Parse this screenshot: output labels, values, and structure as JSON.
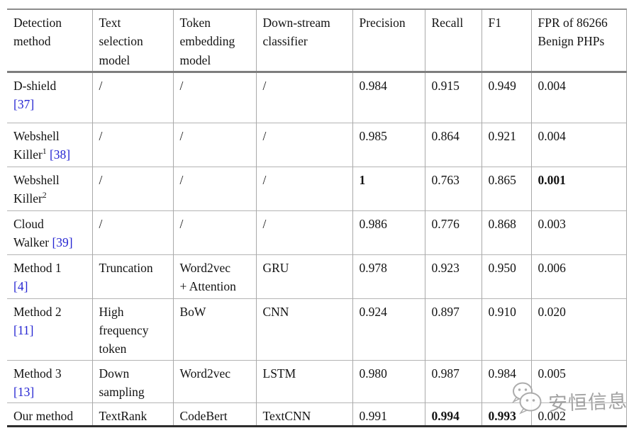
{
  "colors": {
    "citation_blue": "#2525d2",
    "watermark_gray": "#9c9c9c",
    "rule_dark": "#2c2c2c",
    "rule_gray": "#8c8c8c"
  },
  "table": {
    "columns": [
      {
        "label": "Detection\nmethod"
      },
      {
        "label": "Text\nselection\nmodel"
      },
      {
        "label": "Token\nembedding\nmodel"
      },
      {
        "label": "Down-stream\nclassifier"
      },
      {
        "label": "Precision"
      },
      {
        "label": "Recall"
      },
      {
        "label": "F1"
      },
      {
        "label": "FPR of 86266\nBenign PHPs"
      }
    ],
    "rows": [
      {
        "method": [
          {
            "t": "D-shield\n"
          },
          {
            "t": "[37]",
            "cite": true
          }
        ],
        "text_selection": "/",
        "token_embedding": "/",
        "classifier": "/",
        "precision": {
          "v": "0.984"
        },
        "recall": {
          "v": "0.915"
        },
        "f1": {
          "v": "0.949"
        },
        "fpr": {
          "v": "0.004"
        }
      },
      {
        "method": [
          {
            "t": "Webshell\nKiller"
          },
          {
            "t": "1",
            "sup": true
          },
          {
            "t": " "
          },
          {
            "t": "[38]",
            "cite": true
          }
        ],
        "text_selection": "/",
        "token_embedding": "/",
        "classifier": "/",
        "precision": {
          "v": "0.985"
        },
        "recall": {
          "v": "0.864"
        },
        "f1": {
          "v": "0.921"
        },
        "fpr": {
          "v": "0.004"
        }
      },
      {
        "method": [
          {
            "t": "Webshell\nKiller"
          },
          {
            "t": "2",
            "sup": true
          }
        ],
        "text_selection": "/",
        "token_embedding": "/",
        "classifier": "/",
        "precision": {
          "v": "1",
          "bold": true
        },
        "recall": {
          "v": "0.763"
        },
        "f1": {
          "v": "0.865"
        },
        "fpr": {
          "v": "0.001",
          "bold": true
        }
      },
      {
        "method": [
          {
            "t": "Cloud\nWalker "
          },
          {
            "t": "[39]",
            "cite": true
          }
        ],
        "text_selection": "/",
        "token_embedding": "/",
        "classifier": "/",
        "precision": {
          "v": "0.986"
        },
        "recall": {
          "v": "0.776"
        },
        "f1": {
          "v": "0.868"
        },
        "fpr": {
          "v": "0.003"
        }
      },
      {
        "method": [
          {
            "t": "Method 1\n"
          },
          {
            "t": "[4]",
            "cite": true
          }
        ],
        "text_selection": "Truncation",
        "token_embedding": "Word2vec\n+ Attention",
        "classifier": "GRU",
        "precision": {
          "v": "0.978"
        },
        "recall": {
          "v": "0.923"
        },
        "f1": {
          "v": "0.950"
        },
        "fpr": {
          "v": "0.006"
        }
      },
      {
        "method": [
          {
            "t": "Method 2\n"
          },
          {
            "t": "[11]",
            "cite": true
          }
        ],
        "text_selection": "High\nfrequency\ntoken",
        "token_embedding": "BoW",
        "classifier": "CNN",
        "precision": {
          "v": "0.924"
        },
        "recall": {
          "v": "0.897"
        },
        "f1": {
          "v": "0.910"
        },
        "fpr": {
          "v": "0.020"
        }
      },
      {
        "method": [
          {
            "t": "Method 3\n"
          },
          {
            "t": "[13]",
            "cite": true
          }
        ],
        "text_selection": "Down\nsampling",
        "token_embedding": "Word2vec",
        "classifier": "LSTM",
        "precision": {
          "v": "0.980"
        },
        "recall": {
          "v": "0.987"
        },
        "f1": {
          "v": "0.984"
        },
        "fpr": {
          "v": "0.005"
        }
      },
      {
        "method": [
          {
            "t": "Our method"
          }
        ],
        "text_selection": "TextRank",
        "token_embedding": "CodeBert",
        "classifier": "TextCNN",
        "precision": {
          "v": "0.991"
        },
        "recall": {
          "v": "0.994",
          "bold": true
        },
        "f1": {
          "v": "0.993",
          "bold": true
        },
        "fpr": {
          "v": "0.002"
        }
      }
    ]
  },
  "watermark": {
    "icon": "wechat-icon",
    "text": "安恒信息"
  }
}
